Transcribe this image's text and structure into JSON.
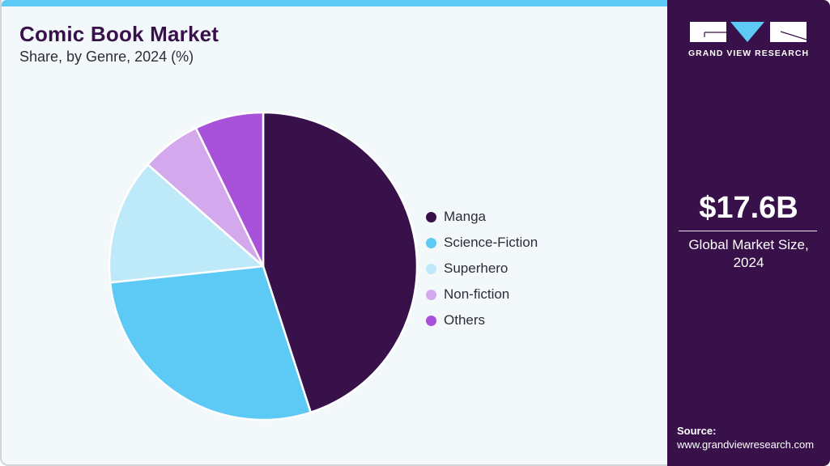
{
  "header": {
    "title": "Comic Book Market",
    "subtitle": "Share, by Genre, 2024 (%)"
  },
  "legend": {
    "items": [
      {
        "label": "Manga",
        "color": "#38114a"
      },
      {
        "label": "Science-Fiction",
        "color": "#5dc9f5"
      },
      {
        "label": "Superhero",
        "color": "#bde9f8"
      },
      {
        "label": "Non-fiction",
        "color": "#d4a8ec"
      },
      {
        "label": "Others",
        "color": "#a752d8"
      }
    ]
  },
  "sidebar": {
    "brand": "GRAND VIEW RESEARCH",
    "market_value": "$17.6B",
    "market_label_line1": "Global Market Size,",
    "market_label_line2": "2024",
    "source_label": "Source:",
    "source_url": "www.grandviewresearch.com"
  },
  "colors": {
    "accent_bar": "#5dc9f5",
    "sidebar_bg": "#38114a",
    "panel_bg": "#f3f8fb",
    "title": "#38114a"
  },
  "chart_data": {
    "type": "pie",
    "title": "Comic Book Market",
    "subtitle": "Share, by Genre, 2024 (%)",
    "categories": [
      "Manga",
      "Science-Fiction",
      "Superhero",
      "Non-fiction",
      "Others"
    ],
    "values": [
      45.0,
      28.3,
      13.2,
      6.3,
      7.2
    ],
    "colors": [
      "#38114a",
      "#5dc9f5",
      "#bde9f8",
      "#d4a8ec",
      "#a752d8"
    ],
    "start_angle": "12 o'clock, clockwise",
    "legend_position": "right",
    "annotations": [
      "$17.6B Global Market Size, 2024"
    ]
  }
}
